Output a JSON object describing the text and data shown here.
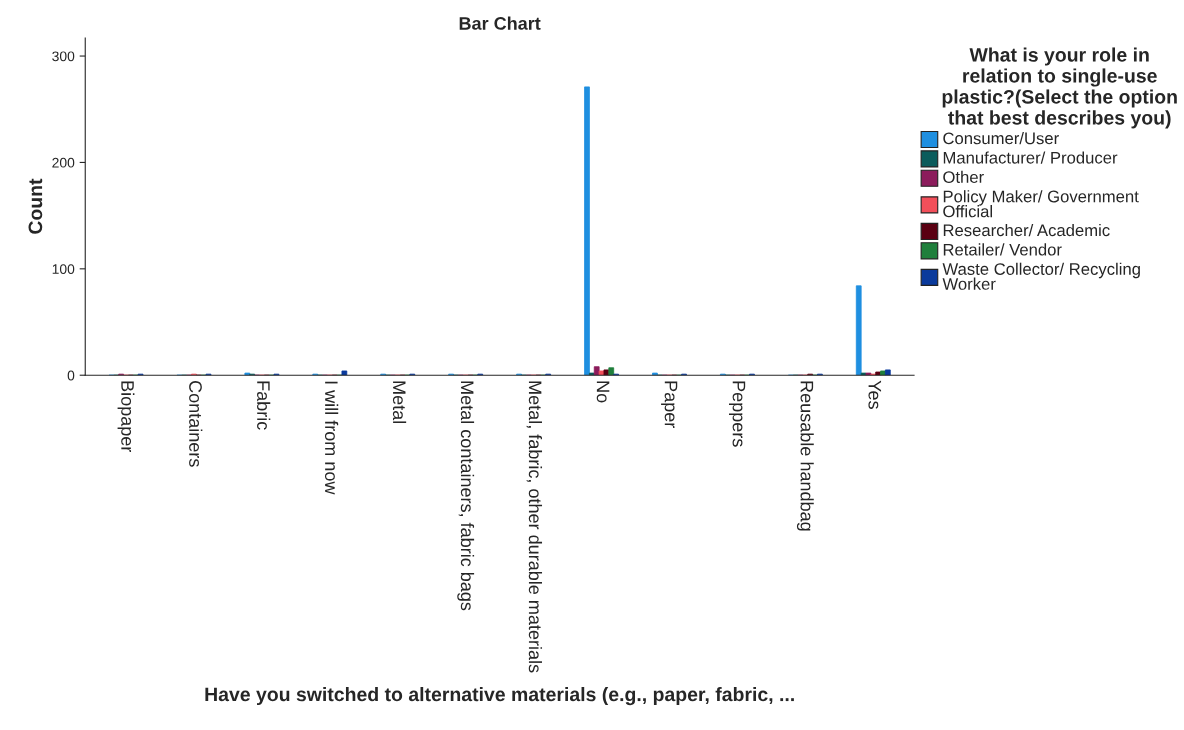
{
  "chart_data": {
    "type": "bar",
    "title": "Bar Chart",
    "xlabel": "Have you switched to alternative materials (e.g., paper, fabric, ...",
    "ylabel": "Count",
    "legend_title": "What is your role in relation to single-use plastic?(Select the option that best describes you)",
    "categories": [
      "Biopaper",
      "Containers",
      "Fabric",
      "I will from now",
      "Metal",
      "Metal containers, fabric bags",
      "Metal, fabric, other durable materials",
      "No",
      "Paper",
      "Peppers",
      "Reusable handbag",
      "Yes"
    ],
    "series": [
      {
        "name": "Consumer/User",
        "color": "#1f8fe0",
        "values": [
          0,
          0,
          2,
          1,
          1,
          1,
          1,
          271,
          2,
          1,
          0,
          84
        ]
      },
      {
        "name": "Manufacturer/ Producer",
        "color": "#0b5c5c",
        "values": [
          0,
          0,
          1,
          0,
          0,
          0,
          0,
          2,
          0,
          0,
          0,
          2
        ]
      },
      {
        "name": "Other",
        "color": "#8c1c5c",
        "values": [
          1,
          0,
          0,
          0,
          0,
          0,
          0,
          8,
          0,
          0,
          0,
          2
        ]
      },
      {
        "name": "Policy Maker/ Government Official",
        "color": "#f24f5a",
        "values": [
          0,
          1,
          0,
          0,
          0,
          0,
          0,
          4,
          0,
          0,
          0,
          1
        ]
      },
      {
        "name": "Researcher/ Academic",
        "color": "#5a0012",
        "values": [
          0,
          0,
          0,
          0,
          0,
          0,
          0,
          5,
          0,
          0,
          1,
          3
        ]
      },
      {
        "name": "Retailer/ Vendor",
        "color": "#1f7f3c",
        "values": [
          0,
          0,
          0,
          0,
          0,
          0,
          0,
          7,
          0,
          0,
          0,
          4
        ]
      },
      {
        "name": "Waste Collector/ Recycling Worker",
        "color": "#0a3a9c",
        "values": [
          1,
          1,
          1,
          4,
          1,
          1,
          1,
          1,
          1,
          1,
          1,
          5
        ]
      }
    ],
    "ylim": [
      0,
      317
    ],
    "yticks": [
      0,
      100,
      200,
      300
    ],
    "grid": false,
    "legend": "right"
  }
}
